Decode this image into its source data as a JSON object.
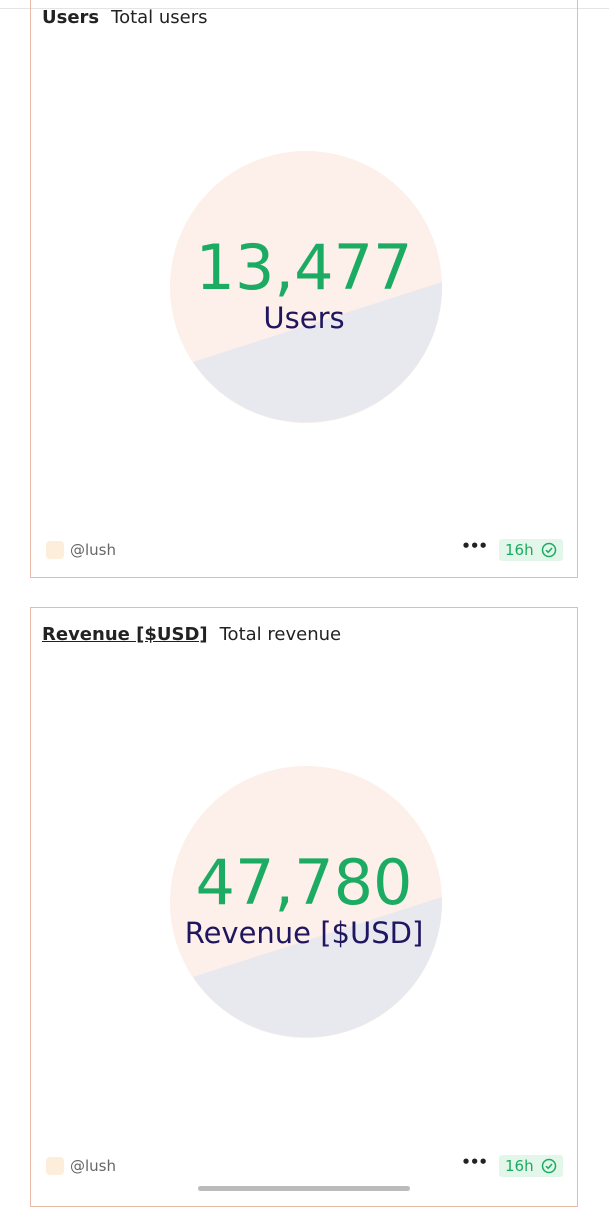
{
  "cards": [
    {
      "title": "Users",
      "subtitle": "Total users",
      "value": "13,477",
      "label": "Users",
      "author": "@lush",
      "age": "16h"
    },
    {
      "title": "Revenue [$USD]",
      "subtitle": "Total revenue",
      "value": "47,780",
      "label": "Revenue [$USD]",
      "author": "@lush",
      "age": "16h"
    }
  ]
}
